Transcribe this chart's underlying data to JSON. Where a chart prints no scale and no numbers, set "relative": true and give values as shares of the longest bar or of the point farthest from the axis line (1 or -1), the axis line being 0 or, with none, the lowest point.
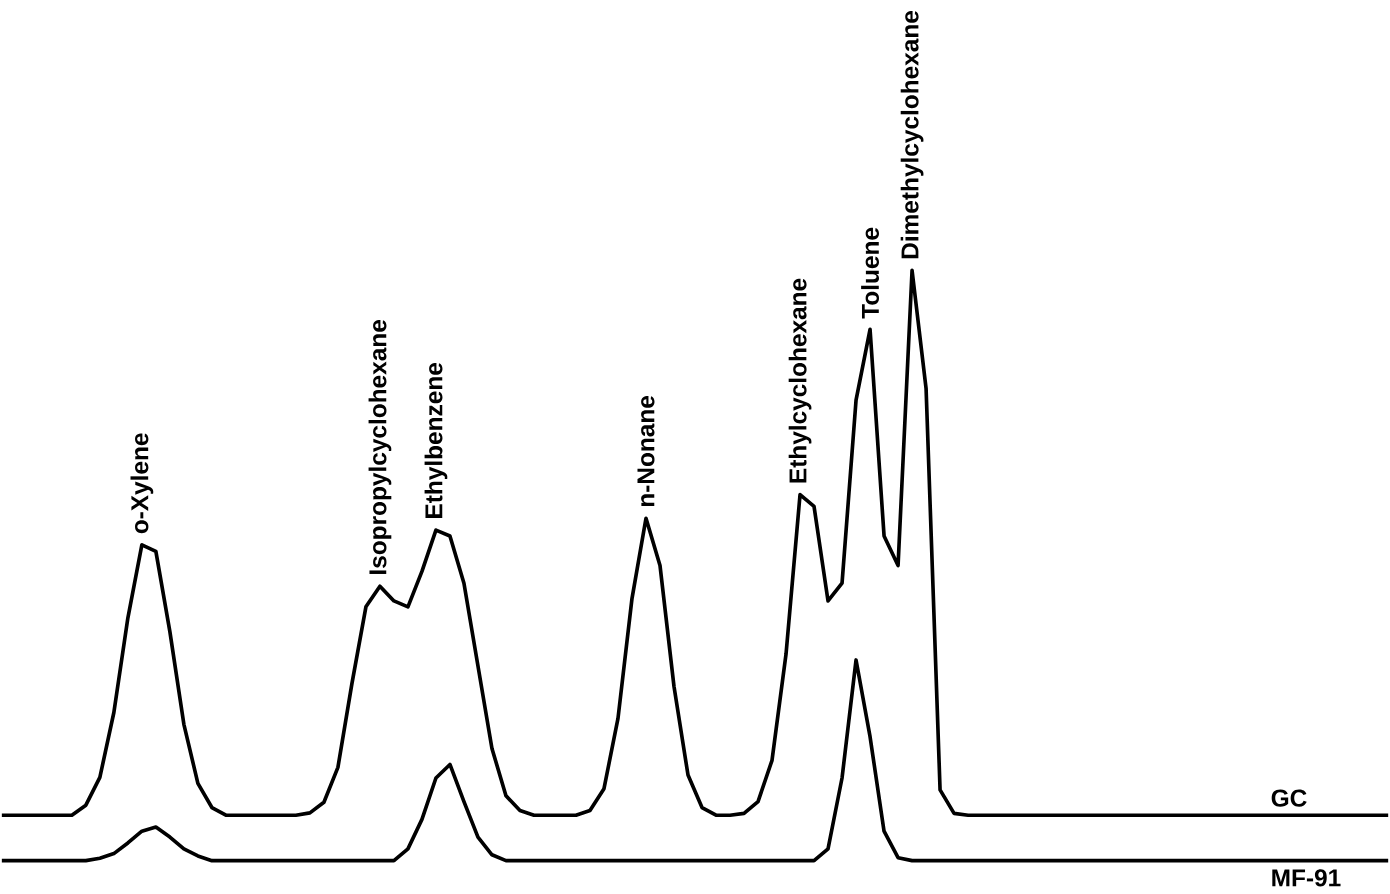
{
  "chart_data": {
    "type": "line",
    "relative": true,
    "categories": [
      null,
      null,
      null,
      null,
      null,
      null,
      null,
      null,
      null,
      null,
      null,
      null,
      null,
      null,
      null,
      null,
      null,
      null,
      null,
      null,
      null,
      null,
      null,
      null,
      null,
      null,
      null,
      null,
      null,
      null,
      null,
      null,
      null,
      null,
      null,
      null,
      null,
      null,
      null,
      null,
      null,
      null,
      null,
      null,
      null,
      null,
      null,
      null,
      null,
      null,
      null,
      null,
      null,
      null,
      null,
      null,
      null,
      null,
      null,
      null,
      null,
      null,
      null,
      null,
      null,
      null,
      null,
      null,
      null,
      null,
      null,
      null,
      null,
      null,
      null,
      null,
      null,
      null,
      null,
      null,
      null,
      null,
      null,
      null,
      null,
      null,
      null,
      null,
      null,
      null,
      null,
      null,
      null,
      null,
      null,
      null,
      null,
      null,
      null,
      null
    ],
    "series": [
      {
        "name": "GC",
        "color": "#000000",
        "values": [
          0.077,
          0.077,
          0.077,
          0.077,
          0.077,
          0.077,
          0.094,
          0.141,
          0.251,
          0.411,
          0.535,
          0.524,
          0.388,
          0.231,
          0.131,
          0.09,
          0.077,
          0.077,
          0.077,
          0.077,
          0.077,
          0.077,
          0.081,
          0.099,
          0.158,
          0.3,
          0.43,
          0.465,
          0.44,
          0.43,
          0.49,
          0.56,
          0.55,
          0.47,
          0.33,
          0.19,
          0.11,
          0.085,
          0.077,
          0.077,
          0.077,
          0.077,
          0.085,
          0.122,
          0.241,
          0.444,
          0.58,
          0.5,
          0.295,
          0.145,
          0.09,
          0.077,
          0.077,
          0.08,
          0.1,
          0.17,
          0.35,
          0.62,
          0.6,
          0.44,
          0.47,
          0.78,
          0.9,
          0.55,
          0.5,
          1.0,
          0.8,
          0.12,
          0.08,
          0.077,
          0.077,
          0.077,
          0.077,
          0.077,
          0.077,
          0.077,
          0.077,
          0.077,
          0.077,
          0.077,
          0.077,
          0.077,
          0.077,
          0.077,
          0.077,
          0.077,
          0.077,
          0.077,
          0.077,
          0.077,
          0.077,
          0.077,
          0.077,
          0.077,
          0.077,
          0.077,
          0.077,
          0.077,
          0.077,
          0.077
        ]
      },
      {
        "name": "MF-91",
        "color": "#000000",
        "values": [
          0,
          0,
          0,
          0,
          0,
          0,
          0,
          0.004,
          0.012,
          0.03,
          0.05,
          0.057,
          0.04,
          0.02,
          0.008,
          0,
          0,
          0,
          0,
          0,
          0,
          0,
          0,
          0,
          0,
          0,
          0,
          0,
          0,
          0.02,
          0.07,
          0.14,
          0.163,
          0.1,
          0.04,
          0.01,
          0,
          0,
          0,
          0,
          0,
          0,
          0,
          0,
          0,
          0,
          0,
          0,
          0,
          0,
          0,
          0,
          0,
          0,
          0,
          0,
          0,
          0,
          0,
          0.02,
          0.14,
          0.34,
          0.21,
          0.05,
          0.005,
          0,
          0,
          0,
          0,
          0,
          0,
          0,
          0,
          0,
          0,
          0,
          0,
          0,
          0,
          0,
          0,
          0,
          0,
          0,
          0,
          0,
          0,
          0,
          0,
          0,
          0,
          0,
          0,
          0,
          0,
          0,
          0,
          0,
          0,
          0
        ]
      }
    ],
    "annotations": [
      {
        "text": "o-Xylene",
        "y": 0.535
      },
      {
        "text": "Isopropylcyclohexane",
        "y": 0.465
      },
      {
        "text": "Ethylbenzene",
        "y": 0.56
      },
      {
        "text": "n-Nonane",
        "y": 0.58
      },
      {
        "text": "Ethylcyclohexane",
        "y": 0.62
      },
      {
        "text": "Toluene",
        "y": 0.9
      },
      {
        "text": "Dimethylcyclohexane",
        "y": 1.0
      }
    ]
  }
}
